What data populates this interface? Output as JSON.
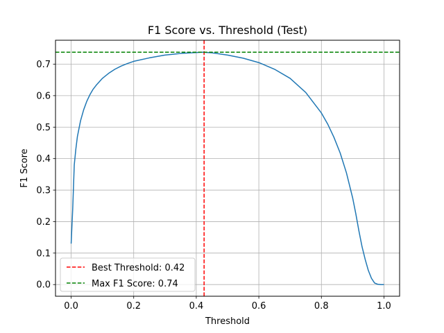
{
  "chart_data": {
    "type": "line",
    "title": "F1 Score vs. Threshold (Test)",
    "xlabel": "Threshold",
    "ylabel": "F1 Score",
    "xlim": [
      -0.05,
      1.05
    ],
    "ylim": [
      -0.037,
      0.776
    ],
    "xticks": [
      0.0,
      0.2,
      0.4,
      0.6,
      0.8,
      1.0
    ],
    "xtick_labels": [
      "0.0",
      "0.2",
      "0.4",
      "0.6",
      "0.8",
      "1.0"
    ],
    "yticks": [
      0.0,
      0.1,
      0.2,
      0.3,
      0.4,
      0.5,
      0.6,
      0.7
    ],
    "ytick_labels": [
      "0.0",
      "0.1",
      "0.2",
      "0.3",
      "0.4",
      "0.5",
      "0.6",
      "0.7"
    ],
    "grid": true,
    "legend_position": "lower-left",
    "series": [
      {
        "color": "#1f77b4",
        "style": "solid",
        "x": [
          0.0,
          0.005,
          0.01,
          0.015,
          0.02,
          0.03,
          0.04,
          0.05,
          0.06,
          0.07,
          0.08,
          0.1,
          0.12,
          0.14,
          0.16,
          0.18,
          0.2,
          0.25,
          0.3,
          0.35,
          0.4,
          0.42,
          0.45,
          0.5,
          0.55,
          0.6,
          0.65,
          0.7,
          0.75,
          0.8,
          0.82,
          0.84,
          0.86,
          0.88,
          0.9,
          0.91,
          0.92,
          0.93,
          0.94,
          0.95,
          0.96,
          0.97,
          0.98,
          0.99,
          1.0
        ],
        "y": [
          0.13,
          0.24,
          0.38,
          0.43,
          0.47,
          0.52,
          0.555,
          0.582,
          0.603,
          0.62,
          0.633,
          0.655,
          0.671,
          0.684,
          0.694,
          0.702,
          0.709,
          0.72,
          0.729,
          0.734,
          0.737,
          0.738,
          0.736,
          0.729,
          0.719,
          0.705,
          0.684,
          0.655,
          0.61,
          0.545,
          0.51,
          0.468,
          0.418,
          0.355,
          0.275,
          0.225,
          0.17,
          0.12,
          0.08,
          0.045,
          0.02,
          0.005,
          0.001,
          0.0,
          0.0
        ]
      }
    ],
    "reference_lines": [
      {
        "orientation": "vertical",
        "value": 0.425,
        "color": "#ff0000",
        "style": "dashed",
        "label": "Best Threshold: 0.42"
      },
      {
        "orientation": "horizontal",
        "value": 0.738,
        "color": "#008000",
        "style": "dashed",
        "label": "Max F1 Score: 0.74"
      }
    ]
  }
}
